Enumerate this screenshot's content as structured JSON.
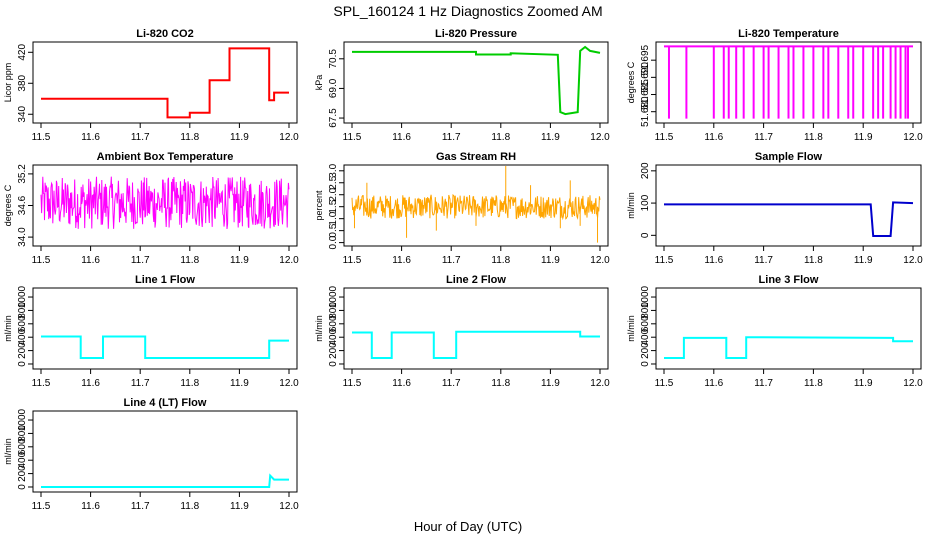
{
  "figure": {
    "title": "SPL_160124  1 Hz Diagnostics Zoomed AM",
    "xlabel": "Hour of Day (UTC)"
  },
  "chart_data": [
    {
      "type": "line",
      "title": "Li-820 CO2",
      "ylabel": "Licor ppm",
      "color": "#ff0000",
      "xlim": [
        11.5,
        12.0
      ],
      "ylim": [
        330,
        432
      ],
      "xticks": [
        "11.5",
        "11.6",
        "11.7",
        "11.8",
        "11.9",
        "12.0"
      ],
      "yticks": [
        "340",
        "380",
        "420"
      ],
      "series": [
        {
          "x": [
            11.5,
            11.755,
            11.755,
            11.8,
            11.8,
            11.84,
            11.84,
            11.88,
            11.88,
            11.96,
            11.96,
            11.97,
            11.97,
            12.0
          ],
          "y": [
            360,
            360,
            336,
            336,
            342,
            342,
            384,
            384,
            425,
            425,
            358,
            358,
            368,
            368
          ]
        }
      ]
    },
    {
      "type": "line",
      "title": "Li-820 Pressure",
      "ylabel": "kPa",
      "color": "#00cc00",
      "xlim": [
        11.5,
        12.0
      ],
      "ylim": [
        67.3,
        71.3
      ],
      "xticks": [
        "11.5",
        "11.6",
        "11.7",
        "11.8",
        "11.9",
        "12.0"
      ],
      "yticks": [
        "67.5",
        "69.0",
        "70.5"
      ],
      "series": [
        {
          "x": [
            11.5,
            11.75,
            11.75,
            11.82,
            11.82,
            11.915,
            11.92,
            11.93,
            11.955,
            11.96,
            11.97,
            11.98,
            12.0
          ],
          "y": [
            70.85,
            70.85,
            70.72,
            70.72,
            70.78,
            70.7,
            67.8,
            67.7,
            67.8,
            70.9,
            71.1,
            70.9,
            70.8
          ]
        }
      ]
    },
    {
      "type": "line",
      "title": "Li-820 Temperature",
      "ylabel": "degrees C",
      "color": "#ff00ff",
      "xlim": [
        11.5,
        12.0
      ],
      "ylim": [
        51.677,
        51.7
      ],
      "xticks": [
        "11.5",
        "11.6",
        "11.7",
        "11.8",
        "11.9",
        "12.0"
      ],
      "yticks": [
        "51.680",
        "51.685",
        "51.690",
        "51.695"
      ],
      "baseline": 51.699,
      "drop": 51.678,
      "drops_x": [
        11.51,
        11.545,
        11.6,
        11.62,
        11.63,
        11.645,
        11.66,
        11.68,
        11.7,
        11.71,
        11.73,
        11.75,
        11.76,
        11.78,
        11.8,
        11.82,
        11.83,
        11.85,
        11.87,
        11.88,
        11.9,
        11.92,
        11.93,
        11.94,
        11.955,
        11.965,
        11.975,
        11.985,
        11.99
      ]
    },
    {
      "type": "line",
      "title": "Ambient Box Temperature",
      "ylabel": "degrees C",
      "color": "#ff00ff",
      "xlim": [
        11.5,
        12.0
      ],
      "ylim": [
        33.85,
        35.35
      ],
      "xticks": [
        "11.5",
        "11.6",
        "11.7",
        "11.8",
        "11.9",
        "12.0"
      ],
      "yticks": [
        "34.0",
        "34.6",
        "35.2"
      ],
      "noise_band": [
        34.15,
        35.15
      ]
    },
    {
      "type": "line",
      "title": "Gas Stream RH",
      "ylabel": "percent",
      "color": "#ffa500",
      "xlim": [
        11.5,
        12.0
      ],
      "ylim": [
        -0.1,
        3.2
      ],
      "xticks": [
        "11.5",
        "11.6",
        "11.7",
        "11.8",
        "11.9",
        "12.0"
      ],
      "yticks": [
        "0.0",
        "0.5",
        "1.0",
        "1.5",
        "2.0",
        "2.5",
        "3.0"
      ],
      "noise_band": [
        1.0,
        2.0
      ],
      "spikes": [
        [
          11.505,
          0.6
        ],
        [
          11.53,
          2.5
        ],
        [
          11.61,
          0.2
        ],
        [
          11.67,
          0.5
        ],
        [
          11.75,
          0.7
        ],
        [
          11.81,
          3.2
        ],
        [
          11.86,
          2.4
        ],
        [
          11.92,
          0.6
        ],
        [
          11.94,
          2.6
        ],
        [
          11.96,
          0.7
        ],
        [
          11.995,
          0.0
        ]
      ]
    },
    {
      "type": "line",
      "title": "Sample Flow",
      "ylabel": "ml/min",
      "color": "#0000cc",
      "xlim": [
        11.5,
        12.0
      ],
      "ylim": [
        -30,
        215
      ],
      "xticks": [
        "11.5",
        "11.6",
        "11.7",
        "11.8",
        "11.9",
        "12.0"
      ],
      "yticks": [
        "0",
        "100",
        "200"
      ],
      "series": [
        {
          "x": [
            11.5,
            11.915,
            11.92,
            11.955,
            11.96,
            12.0
          ],
          "y": [
            96,
            96,
            -2,
            -2,
            102,
            100
          ]
        }
      ]
    },
    {
      "type": "line",
      "title": "Line 1 Flow",
      "ylabel": "ml/min",
      "color": "#00ffff",
      "xlim": [
        11.5,
        12.0
      ],
      "ylim": [
        -60,
        1120
      ],
      "xticks": [
        "11.5",
        "11.6",
        "11.7",
        "11.8",
        "11.9",
        "12.0"
      ],
      "yticks": [
        "0",
        "200",
        "400",
        "600",
        "800",
        "1000"
      ],
      "series": [
        {
          "x": [
            11.5,
            11.58,
            11.58,
            11.625,
            11.625,
            11.71,
            11.71,
            11.96,
            11.96,
            12.0
          ],
          "y": [
            410,
            410,
            90,
            90,
            410,
            410,
            90,
            90,
            350,
            350
          ]
        }
      ]
    },
    {
      "type": "line",
      "title": "Line 2 Flow",
      "ylabel": "ml/min",
      "color": "#00ffff",
      "xlim": [
        11.5,
        12.0
      ],
      "ylim": [
        -60,
        1120
      ],
      "xticks": [
        "11.5",
        "11.6",
        "11.7",
        "11.8",
        "11.9",
        "12.0"
      ],
      "yticks": [
        "0",
        "200",
        "400",
        "600",
        "800",
        "1000"
      ],
      "series": [
        {
          "x": [
            11.5,
            11.54,
            11.54,
            11.58,
            11.58,
            11.665,
            11.665,
            11.71,
            11.71,
            11.96,
            11.96,
            12.0
          ],
          "y": [
            470,
            470,
            90,
            90,
            470,
            470,
            90,
            90,
            480,
            480,
            410,
            410
          ]
        }
      ]
    },
    {
      "type": "line",
      "title": "Line 3 Flow",
      "ylabel": "ml/min",
      "color": "#00ffff",
      "xlim": [
        11.5,
        12.0
      ],
      "ylim": [
        -60,
        1120
      ],
      "xticks": [
        "11.5",
        "11.6",
        "11.7",
        "11.8",
        "11.9",
        "12.0"
      ],
      "yticks": [
        "0",
        "200",
        "400",
        "600",
        "800",
        "1000"
      ],
      "series": [
        {
          "x": [
            11.5,
            11.54,
            11.54,
            11.625,
            11.625,
            11.665,
            11.665,
            11.96,
            11.96,
            12.0
          ],
          "y": [
            90,
            90,
            390,
            390,
            90,
            90,
            400,
            390,
            340,
            340
          ]
        }
      ]
    },
    {
      "type": "line",
      "title": "Line 4 (LT) Flow",
      "ylabel": "ml/min",
      "color": "#00ffff",
      "xlim": [
        11.5,
        12.0
      ],
      "ylim": [
        -60,
        1120
      ],
      "xticks": [
        "11.5",
        "11.6",
        "11.7",
        "11.8",
        "11.9",
        "12.0"
      ],
      "yticks": [
        "0",
        "200",
        "400",
        "600",
        "800",
        "1000"
      ],
      "series": [
        {
          "x": [
            11.5,
            11.96,
            11.962,
            11.97,
            12.0
          ],
          "y": [
            0,
            0,
            170,
            110,
            110
          ]
        }
      ]
    }
  ]
}
